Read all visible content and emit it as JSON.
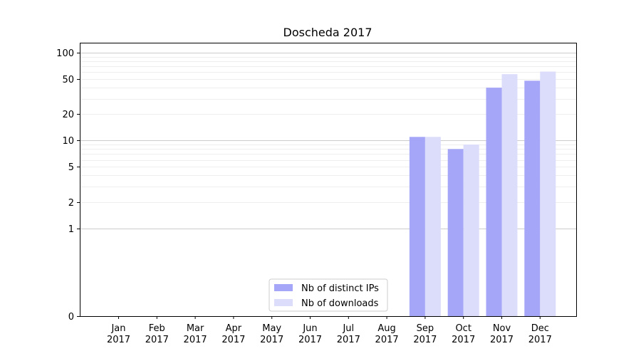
{
  "chart_data": {
    "type": "bar",
    "title": "Doscheda 2017",
    "xlabel": "",
    "ylabel": "",
    "y_scale": "symlog",
    "ylim": [
      0,
      130
    ],
    "yticks": [
      0,
      1,
      2,
      5,
      10,
      20,
      50,
      100
    ],
    "ytick_labels": [
      "0",
      "1",
      "2",
      "5",
      "10",
      "20",
      "50",
      "100"
    ],
    "grid": true,
    "legend_position": "bottom-center",
    "categories": [
      [
        "Jan",
        "2017"
      ],
      [
        "Feb",
        "2017"
      ],
      [
        "Mar",
        "2017"
      ],
      [
        "Apr",
        "2017"
      ],
      [
        "May",
        "2017"
      ],
      [
        "Jun",
        "2017"
      ],
      [
        "Jul",
        "2017"
      ],
      [
        "Aug",
        "2017"
      ],
      [
        "Sep",
        "2017"
      ],
      [
        "Oct",
        "2017"
      ],
      [
        "Nov",
        "2017"
      ],
      [
        "Dec",
        "2017"
      ]
    ],
    "series": [
      {
        "name": "Nb of distinct IPs",
        "color": "#a6a6f8",
        "values": [
          0,
          0,
          0,
          0,
          0,
          0,
          0,
          0,
          11,
          8,
          40,
          48
        ]
      },
      {
        "name": "Nb of downloads",
        "color": "#dcdcfb",
        "values": [
          0,
          0,
          0,
          0,
          0,
          0,
          0,
          0,
          11,
          9,
          57,
          61
        ]
      }
    ]
  }
}
